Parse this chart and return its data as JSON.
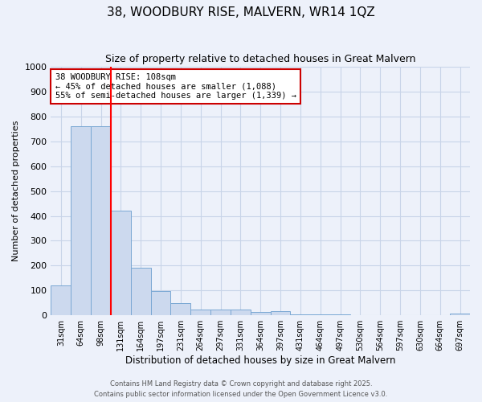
{
  "title1": "38, WOODBURY RISE, MALVERN, WR14 1QZ",
  "title2": "Size of property relative to detached houses in Great Malvern",
  "xlabel": "Distribution of detached houses by size in Great Malvern",
  "ylabel": "Number of detached properties",
  "categories": [
    "31sqm",
    "64sqm",
    "98sqm",
    "131sqm",
    "164sqm",
    "197sqm",
    "231sqm",
    "264sqm",
    "297sqm",
    "331sqm",
    "364sqm",
    "397sqm",
    "431sqm",
    "464sqm",
    "497sqm",
    "530sqm",
    "564sqm",
    "597sqm",
    "630sqm",
    "664sqm",
    "697sqm"
  ],
  "values": [
    120,
    760,
    760,
    420,
    190,
    97,
    48,
    22,
    23,
    22,
    15,
    18,
    5,
    3,
    3,
    2,
    1,
    1,
    1,
    1,
    8
  ],
  "bar_color": "#ccd9ee",
  "bar_edge_color": "#7aa8d4",
  "grid_color": "#c8d4e8",
  "background_color": "#edf1fa",
  "red_line_x": 2.5,
  "annotation_line1": "38 WOODBURY RISE: 108sqm",
  "annotation_line2": "← 45% of detached houses are smaller (1,088)",
  "annotation_line3": "55% of semi-detached houses are larger (1,339) →",
  "annotation_box_color": "#ffffff",
  "annotation_box_edge": "#cc0000",
  "ylim": [
    0,
    1000
  ],
  "yticks": [
    0,
    100,
    200,
    300,
    400,
    500,
    600,
    700,
    800,
    900,
    1000
  ],
  "footer1": "Contains HM Land Registry data © Crown copyright and database right 2025.",
  "footer2": "Contains public sector information licensed under the Open Government Licence v3.0.",
  "title1_fontsize": 11,
  "title2_fontsize": 9
}
